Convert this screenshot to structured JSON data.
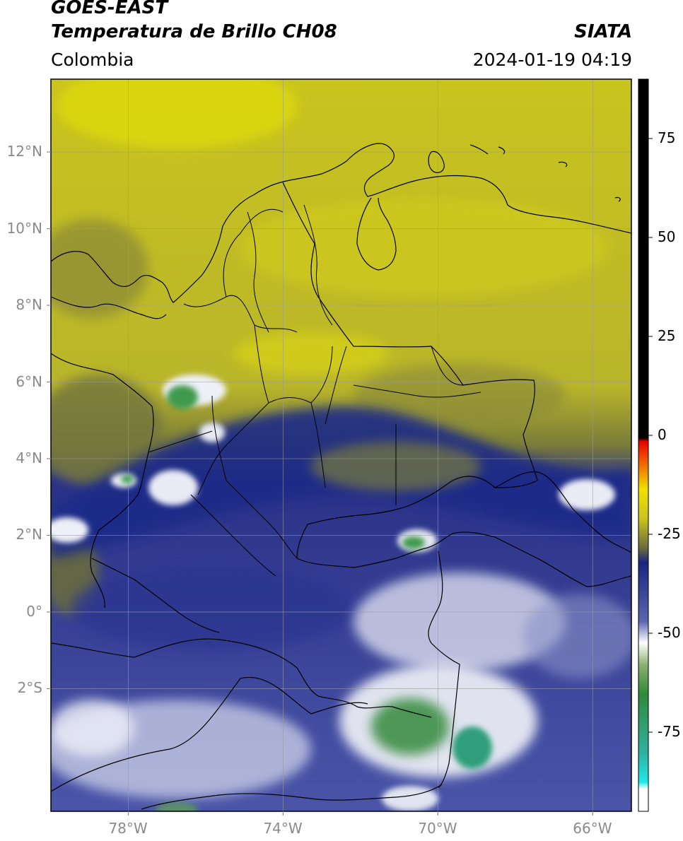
{
  "header": {
    "satellite": "GOES-EAST",
    "product": "Temperatura de Brillo CH08",
    "organization": "SIATA",
    "region": "Colombia",
    "timestamp": "2024-01-19 04:19"
  },
  "map": {
    "extent_lon": [
      -80.0,
      -65.0
    ],
    "extent_lat": [
      -5.2,
      13.9
    ],
    "lat_ticks": [
      {
        "value": 12,
        "label": "12°N"
      },
      {
        "value": 10,
        "label": "10°N"
      },
      {
        "value": 8,
        "label": "8°N"
      },
      {
        "value": 6,
        "label": "6°N"
      },
      {
        "value": 4,
        "label": "4°N"
      },
      {
        "value": 2,
        "label": "2°N"
      },
      {
        "value": 0,
        "label": "0°"
      },
      {
        "value": -2,
        "label": "2°S"
      }
    ],
    "lon_ticks": [
      {
        "value": -78,
        "label": "78°W"
      },
      {
        "value": -74,
        "label": "74°W"
      },
      {
        "value": -70,
        "label": "70°W"
      },
      {
        "value": -66,
        "label": "66°W"
      }
    ]
  },
  "colorbar": {
    "range": [
      -95,
      90
    ],
    "ticks": [
      {
        "value": 75,
        "label": "75"
      },
      {
        "value": 50,
        "label": "50"
      },
      {
        "value": 25,
        "label": "25"
      },
      {
        "value": 0,
        "label": "0"
      },
      {
        "value": -25,
        "label": "-25"
      },
      {
        "value": -50,
        "label": "-50"
      },
      {
        "value": -75,
        "label": "-75"
      }
    ]
  },
  "colors": {
    "dry_yellow": "#c9c41e",
    "dark_olive": "#6f7232",
    "deep_blue": "#1e2a86",
    "mid_blue": "#3d4aa0",
    "cold_white": "#f2f4f8",
    "coldest_green": "#2f8a3a",
    "border_line": "#000000",
    "grid_line": "#9a9a9a"
  }
}
